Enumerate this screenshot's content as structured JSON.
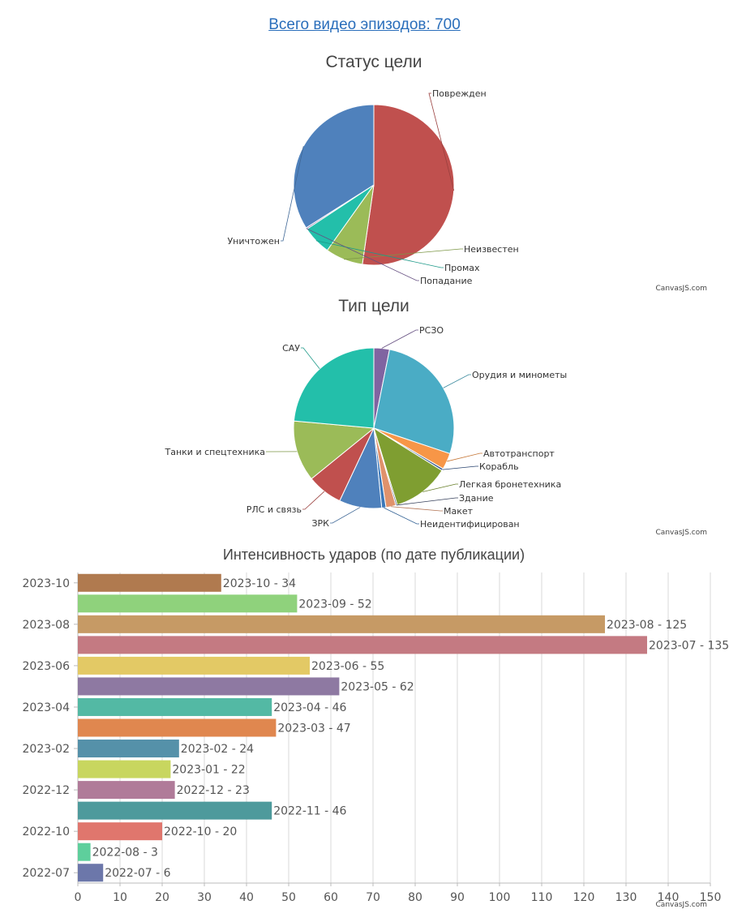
{
  "header": {
    "episodes_link": "Всего видео эпизодов: 700"
  },
  "credit": "CanvasJS.com",
  "chart_data": [
    {
      "type": "pie",
      "title": "Статус цели",
      "slices": [
        {
          "label": "Поврежден",
          "value": 366,
          "color": "#c0504e"
        },
        {
          "label": "Неизвестен",
          "value": 53,
          "color": "#9bbb58"
        },
        {
          "label": "Промах",
          "value": 41,
          "color": "#23bfaa"
        },
        {
          "label": "Попадание",
          "value": 2,
          "color": "#8064a1"
        },
        {
          "label": "Уничтожен",
          "value": 238,
          "color": "#4f81bc"
        }
      ]
    },
    {
      "type": "pie",
      "title": "Тип цели",
      "slices": [
        {
          "label": "РСЗО",
          "value": 22,
          "color": "#8064a1"
        },
        {
          "label": "Орудия и минометы",
          "value": 189,
          "color": "#4aacc5"
        },
        {
          "label": "Автотранспорт",
          "value": 23,
          "color": "#f79647"
        },
        {
          "label": "Корабль",
          "value": 3,
          "color": "#33558b"
        },
        {
          "label": "Легкая бронетехника",
          "value": 80,
          "color": "#7f9e31"
        },
        {
          "label": "Здание",
          "value": 2,
          "color": "#445072"
        },
        {
          "label": "Макет",
          "value": 14,
          "color": "#e0926c"
        },
        {
          "label": "Неидентифицирован",
          "value": 6,
          "color": "#3b77b8"
        },
        {
          "label": "ЗРК",
          "value": 60,
          "color": "#4f81bc"
        },
        {
          "label": "РЛС и связь",
          "value": 50,
          "color": "#c0504e"
        },
        {
          "label": "Танки и спецтехника",
          "value": 86,
          "color": "#9bbb58"
        },
        {
          "label": "САУ",
          "value": 165,
          "color": "#23bfaa"
        }
      ]
    },
    {
      "type": "bar",
      "orientation": "horizontal",
      "title": "Интенсивность ударов (по дате публикации)",
      "xlim": [
        0,
        150
      ],
      "xticks": [
        "0",
        "10",
        "20",
        "30",
        "40",
        "50",
        "60",
        "70",
        "80",
        "90",
        "100",
        "110",
        "120",
        "130",
        "140",
        "150"
      ],
      "yticks": [
        "2023-10",
        "2023-08",
        "2023-06",
        "2023-04",
        "2023-02",
        "2022-12",
        "2022-10",
        "2022-07"
      ],
      "bars": [
        {
          "category": "2023-10",
          "value": 34,
          "label": "2023-10 - 34",
          "color": "#b07a4f"
        },
        {
          "category": "2023-09",
          "value": 52,
          "label": "2023-09 - 52",
          "color": "#8fd27c"
        },
        {
          "category": "2023-08",
          "value": 125,
          "label": "2023-08 - 125",
          "color": "#c69a65"
        },
        {
          "category": "2023-07",
          "value": 135,
          "label": "2023-07 - 135",
          "color": "#c47a82"
        },
        {
          "category": "2023-06",
          "value": 55,
          "label": "2023-06 - 55",
          "color": "#e3c965"
        },
        {
          "category": "2023-05",
          "value": 62,
          "label": "2023-05 - 62",
          "color": "#8e79a2"
        },
        {
          "category": "2023-04",
          "value": 46,
          "label": "2023-04 - 46",
          "color": "#53b9a4"
        },
        {
          "category": "2023-03",
          "value": 47,
          "label": "2023-03 - 47",
          "color": "#e0874f"
        },
        {
          "category": "2023-02",
          "value": 24,
          "label": "2023-02 - 24",
          "color": "#5591a9"
        },
        {
          "category": "2023-01",
          "value": 22,
          "label": "2023-01 - 22",
          "color": "#c8d65f"
        },
        {
          "category": "2022-12",
          "value": 23,
          "label": "2022-12 - 23",
          "color": "#b07b99"
        },
        {
          "category": "2022-11",
          "value": 46,
          "label": "2022-11 - 46",
          "color": "#4e9a9c"
        },
        {
          "category": "2022-10",
          "value": 20,
          "label": "2022-10 - 20",
          "color": "#e0766d"
        },
        {
          "category": "2022-08",
          "value": 3,
          "label": "2022-08 - 3",
          "color": "#5ecf9c"
        },
        {
          "category": "2022-07",
          "value": 6,
          "label": "2022-07 - 6",
          "color": "#6c77aa"
        }
      ]
    }
  ]
}
